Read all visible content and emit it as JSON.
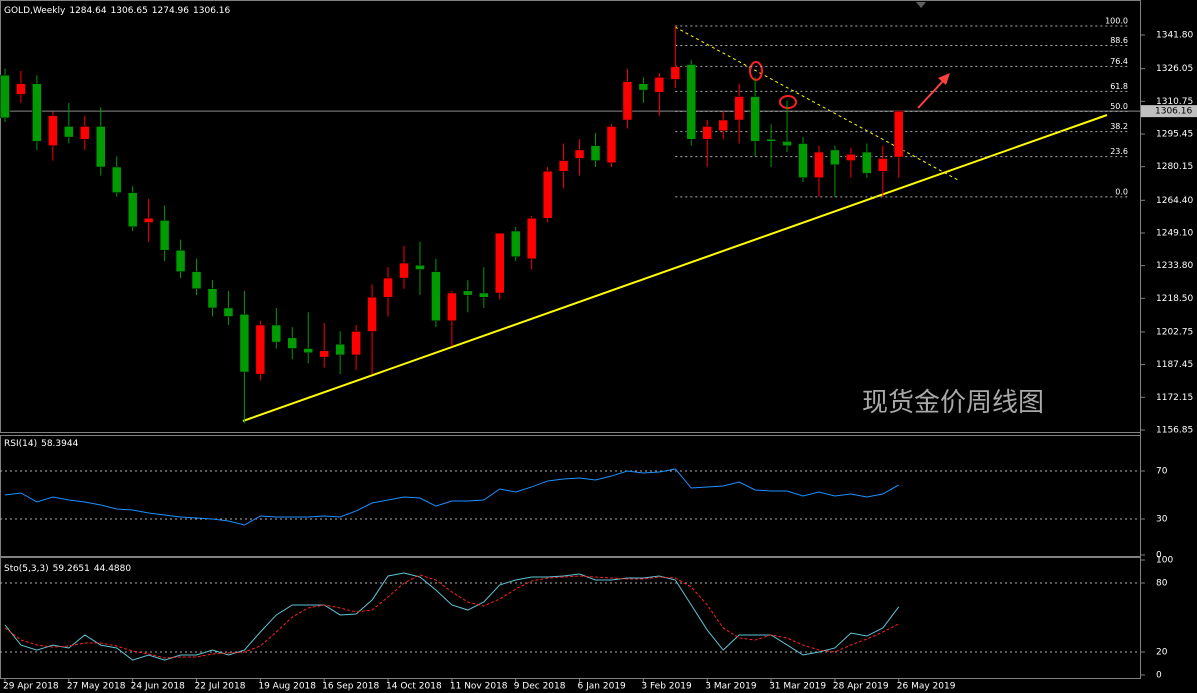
{
  "chart_data": [
    {
      "type": "candlestick",
      "title": "GOLD,Weekly",
      "categories": [
        "29 Apr 2018",
        null,
        null,
        null,
        "27 May 2018",
        null,
        null,
        null,
        "24 Jun 2018",
        null,
        null,
        null,
        "22 Jul 2018",
        null,
        null,
        null,
        "19 Aug 2018",
        null,
        null,
        null,
        "16 Sep 2018",
        null,
        null,
        null,
        "14 Oct 2018",
        null,
        null,
        null,
        "11 Nov 2018",
        null,
        null,
        null,
        "9 Dec 2018",
        null,
        null,
        null,
        "6 Jan 2019",
        null,
        null,
        null,
        "3 Feb 2019",
        null,
        null,
        null,
        "3 Mar 2019",
        null,
        null,
        null,
        "31 Mar 2019",
        null,
        null,
        null,
        "28 Apr 2019",
        null,
        null,
        null,
        "26 May 2019"
      ],
      "open": [
        1323,
        1314,
        1319,
        1290,
        1299,
        1293,
        1299,
        1280,
        1268,
        1254,
        1255,
        1241,
        1231,
        1223,
        1214,
        1211,
        1183,
        1206,
        1200,
        1195,
        1191,
        1197,
        1192,
        1203,
        1219,
        1228,
        1234,
        1231,
        1208,
        1222,
        1221,
        1221,
        1250,
        1237,
        1256,
        1278,
        1284,
        1290,
        1282,
        1302,
        1319,
        1315,
        1321,
        1328,
        1293,
        1297,
        1302,
        1313,
        1293,
        1292,
        1291,
        1275,
        1288,
        1283,
        1287,
        1278,
        1284.64
      ],
      "high": [
        1326,
        1325,
        1323,
        1306,
        1310,
        1304,
        1308,
        1285,
        1271,
        1265,
        1262,
        1246,
        1237,
        1227,
        1222,
        1222,
        1208,
        1214,
        1205,
        1212,
        1207,
        1203,
        1206,
        1225,
        1233,
        1243,
        1245,
        1237,
        1222,
        1227,
        1233,
        1249,
        1252,
        1257,
        1280,
        1291,
        1293,
        1296,
        1300,
        1326,
        1322,
        1324,
        1346,
        1330,
        1302,
        1306,
        1319,
        1322,
        1300,
        1311,
        1294,
        1290,
        1290,
        1289,
        1291,
        1290,
        1306.65
      ],
      "low": [
        1301,
        1310,
        1288,
        1283,
        1291,
        1288,
        1276,
        1266,
        1250,
        1245,
        1236,
        1228,
        1220,
        1210,
        1206,
        1160,
        1180,
        1195,
        1190,
        1188,
        1186,
        1183,
        1185,
        1183,
        1210,
        1223,
        1220,
        1205,
        1196,
        1212,
        1214,
        1218,
        1236,
        1232,
        1254,
        1270,
        1276,
        1280,
        1280,
        1298,
        1310,
        1304,
        1317,
        1290,
        1280,
        1293,
        1291,
        1285,
        1280,
        1287,
        1273,
        1266,
        1266,
        1275,
        1275,
        1266,
        1274.96
      ],
      "close": [
        1303,
        1319,
        1292,
        1304,
        1294,
        1299,
        1280,
        1268,
        1252,
        1256,
        1241,
        1231,
        1223,
        1214,
        1210,
        1184,
        1206,
        1198,
        1195,
        1193,
        1194,
        1192,
        1203,
        1219,
        1228,
        1235,
        1232,
        1208,
        1221,
        1220,
        1219,
        1249,
        1238,
        1256,
        1278,
        1283,
        1288,
        1283,
        1299,
        1320,
        1316,
        1322,
        1327,
        1293,
        1299,
        1302,
        1313,
        1292,
        1292,
        1290,
        1275,
        1287,
        1281,
        1286,
        1277,
        1284,
        1306.16
      ],
      "up_color": "#ff0000",
      "down_color": "#009b00",
      "ylim": [
        1155.9,
        1356.8
      ],
      "yticks": [
        {
          "value": 1156.85,
          "label": "1156.85"
        },
        {
          "value": 1172.15,
          "label": "1172.15"
        },
        {
          "value": 1187.45,
          "label": "1187.45"
        },
        {
          "value": 1202.75,
          "label": "1202.75"
        },
        {
          "value": 1218.5,
          "label": "1218.50"
        },
        {
          "value": 1233.8,
          "label": "1233.80"
        },
        {
          "value": 1249.1,
          "label": "1249.10"
        },
        {
          "value": 1264.4,
          "label": "1264.40"
        },
        {
          "value": 1280.15,
          "label": "1280.15"
        },
        {
          "value": 1295.45,
          "label": "1295.45"
        },
        {
          "value": 1310.75,
          "label": "1310.75"
        },
        {
          "value": 1326.05,
          "label": "1326.05"
        },
        {
          "value": 1341.8,
          "label": "1341.80"
        }
      ],
      "fibonacci": [
        {
          "value": 0,
          "label": "0.0"
        },
        {
          "value": 23.6,
          "label": "23.6"
        },
        {
          "value": 38.2,
          "label": "38.2"
        },
        {
          "value": 50,
          "label": "50.0"
        },
        {
          "value": 61.8,
          "label": "61.8"
        },
        {
          "value": 76.4,
          "label": "76.4"
        },
        {
          "value": 88.6,
          "label": "88.6"
        },
        {
          "value": 100,
          "label": "100.0"
        }
      ],
      "watermark": "现货金价周线图"
    },
    {
      "type": "line",
      "title": "RSI(14)",
      "series": [
        {
          "name": "RSI",
          "color": "#1e90ff",
          "values": [
            50,
            51.7,
            44.2,
            48.3,
            45.8,
            44.2,
            41.7,
            38.3,
            37.5,
            35,
            33.3,
            31.7,
            30.8,
            30,
            28.3,
            25,
            32.5,
            31.7,
            31.7,
            31.7,
            32.5,
            31.7,
            36.7,
            43.3,
            45.8,
            48.3,
            47.5,
            40.8,
            45,
            45,
            45.8,
            55,
            52.5,
            56.7,
            61.7,
            63.3,
            64.2,
            62.5,
            65.8,
            70,
            68.3,
            69.2,
            71.7,
            55.8,
            56.7,
            57.5,
            60.8,
            54.2,
            53.3,
            53.3,
            49.2,
            52.5,
            49.2,
            50.8,
            48.3,
            50.8,
            58.3944
          ]
        }
      ],
      "ylim": [
        0,
        100
      ],
      "yticks": [
        0,
        30,
        70
      ],
      "levels": [
        30,
        70
      ]
    },
    {
      "type": "line",
      "title": "Sto(5,3,3)",
      "series": [
        {
          "name": "Main",
          "color": "#5fc3d6",
          "values": [
            43.5,
            26,
            21.7,
            26,
            23.5,
            34.8,
            26,
            23.5,
            13,
            17.4,
            13,
            17.4,
            17.4,
            21.7,
            17.4,
            21.7,
            37.4,
            52.2,
            60.9,
            60.9,
            60.9,
            52.2,
            53,
            65.2,
            86.1,
            88.7,
            85.2,
            73.9,
            60.9,
            56.5,
            63.5,
            78.3,
            82.6,
            85.2,
            85.2,
            86.1,
            87.8,
            82.6,
            82.6,
            84.3,
            84.3,
            86.1,
            82.6,
            60.9,
            39.1,
            21.7,
            34.8,
            34.8,
            34.8,
            26.1,
            17.4,
            20,
            23.5,
            36.5,
            33.9,
            40.9,
            59.2651
          ]
        },
        {
          "name": "Signal",
          "color": "#ff2020",
          "dashed": true,
          "values": [
            40.9,
            30.4,
            26.1,
            24.3,
            25.2,
            27.8,
            27.8,
            25.2,
            20.9,
            18.3,
            14.8,
            15.7,
            15.7,
            18.3,
            19.1,
            20,
            25.2,
            37.4,
            50.4,
            58.3,
            60.9,
            58.3,
            54.8,
            56.5,
            67.8,
            80,
            87,
            82.6,
            72.2,
            63.5,
            60,
            66.1,
            74.8,
            81.7,
            84.3,
            85.2,
            86.1,
            85.2,
            84.3,
            83.5,
            83.5,
            85.2,
            84.3,
            76.5,
            60.9,
            40.9,
            32.2,
            30.4,
            34.8,
            32.2,
            26.1,
            21.7,
            20,
            26.1,
            31.3,
            37.4,
            44.488
          ],
          "value_labels": [
            null,
            null,
            null,
            null,
            null,
            null,
            null,
            null,
            null,
            null,
            null,
            null,
            null,
            null,
            null,
            null,
            null,
            null,
            null,
            null,
            null,
            null,
            null,
            null,
            null,
            null,
            null,
            null,
            null,
            null,
            null,
            null,
            null,
            null,
            null,
            null,
            null,
            null,
            null,
            null,
            null,
            null,
            null,
            null,
            null,
            null,
            null,
            null,
            null,
            null,
            null,
            null,
            null,
            null,
            null,
            null,
            "44.4880"
          ]
        }
      ],
      "ylim": [
        0,
        100
      ],
      "yticks": [
        0,
        20,
        80,
        100
      ],
      "levels": [
        20,
        80
      ]
    }
  ]
}
